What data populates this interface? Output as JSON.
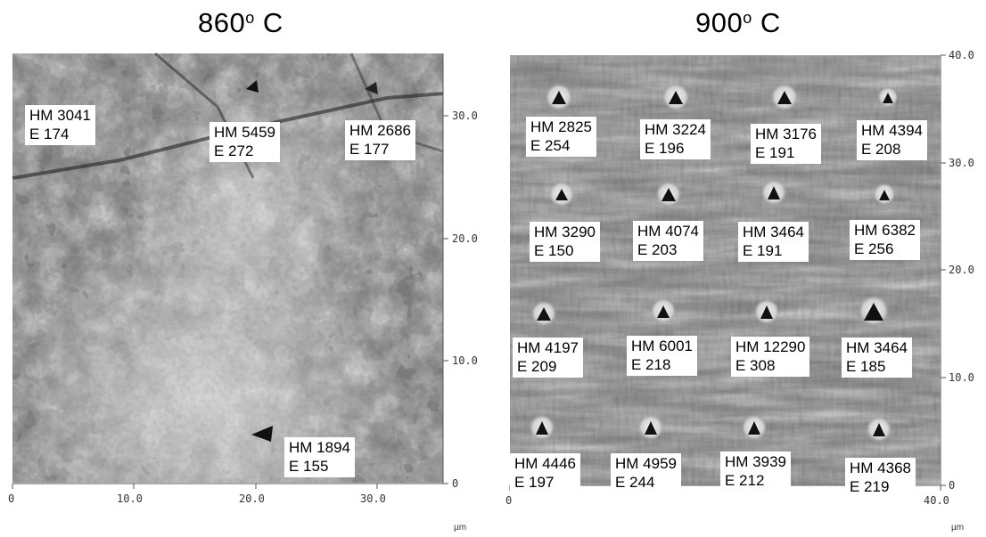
{
  "panels": [
    {
      "title_main": "860",
      "title_sup": "o",
      "title_suffix": " C",
      "x_ticks": [
        "0",
        "10.0",
        "20.0",
        "30.0"
      ],
      "y_ticks": [
        "30.0",
        "20.0",
        "10.0",
        "0"
      ],
      "unit": "µm",
      "labels": [
        {
          "hm": "HM 3041",
          "e": "E 174"
        },
        {
          "hm": "HM 5459",
          "e": "E 272"
        },
        {
          "hm": "HM 2686",
          "e": "E 177"
        },
        {
          "hm": "HM 1894",
          "e": "E 155"
        }
      ]
    },
    {
      "title_main": "900",
      "title_sup": "o",
      "title_suffix": " C",
      "x_ticks": [
        "0",
        "40.0"
      ],
      "y_ticks": [
        "40.0",
        "30.0",
        "20.0",
        "10.0",
        "0"
      ],
      "unit": "µm",
      "labels": [
        {
          "hm": "HM 2825",
          "e": "E 254"
        },
        {
          "hm": "HM 3224",
          "e": "E 196"
        },
        {
          "hm": "HM 3176",
          "e": "E 191"
        },
        {
          "hm": "HM 4394",
          "e": "E 208"
        },
        {
          "hm": "HM 3290",
          "e": "E 150"
        },
        {
          "hm": "HM 4074",
          "e": "E 203"
        },
        {
          "hm": "HM 3464",
          "e": "E 191"
        },
        {
          "hm": "HM 6382",
          "e": "E 256"
        },
        {
          "hm": "HM 4197",
          "e": "E 209"
        },
        {
          "hm": "HM 6001",
          "e": "E 218"
        },
        {
          "hm": "HM 12290",
          "e": "E 308"
        },
        {
          "hm": "HM 3464",
          "e": "E 185"
        },
        {
          "hm": "HM 4446",
          "e": "E 197"
        },
        {
          "hm": "HM 4959",
          "e": "E 244"
        },
        {
          "hm": "HM 3939",
          "e": "E 212"
        },
        {
          "hm": "HM 4368",
          "e": "E 219"
        }
      ]
    }
  ]
}
